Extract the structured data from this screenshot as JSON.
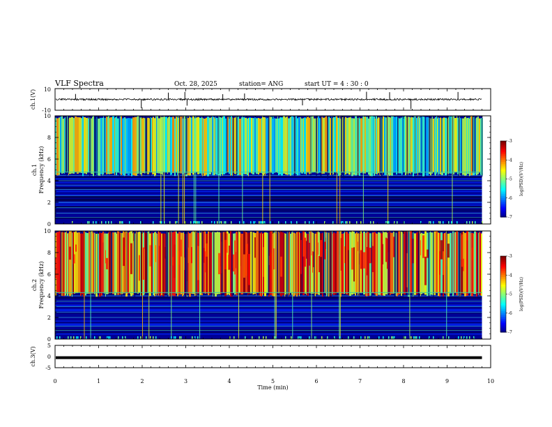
{
  "header": {
    "title": "VLF Spectra",
    "date": "Oct. 28, 2025",
    "station": "station= ANG",
    "start": "start  UT =   4 : 30 : 0"
  },
  "chart_data": [
    {
      "type": "line",
      "name": "ch1-waveform",
      "ylabel": "ch.1(V)",
      "ylim": [
        -10,
        10
      ],
      "y_tick_labels": [
        "10",
        "-10"
      ],
      "baseline": 0,
      "noise_band": [
        -0.8,
        0.8
      ],
      "spike_times_min": [
        0.47,
        1.98,
        2.6,
        2.98,
        3.03,
        3.85,
        4.35,
        5.68,
        7.15,
        7.68,
        8.17,
        9.25
      ]
    },
    {
      "type": "heatmap",
      "name": "ch1-spectrogram",
      "ylabel_lines": [
        "ch.1",
        "Frequency (kHz)"
      ],
      "ylim": [
        0,
        10
      ],
      "y_tick_labels": [
        "0",
        "2",
        "4",
        "6",
        "8",
        "10"
      ],
      "xlim": [
        0,
        9.8
      ],
      "transition_khz": 4.8,
      "low_band_lines_khz": [
        0.6,
        1.0,
        1.5,
        2.0,
        2.6,
        3.2,
        3.6,
        4.0,
        4.5
      ],
      "colorbar": {
        "label": "log(PSD)(V²/Hz)",
        "range": [
          -7,
          -3
        ],
        "tick_labels": [
          "-3",
          "-4",
          "-5",
          "-6",
          "-7"
        ]
      }
    },
    {
      "type": "heatmap",
      "name": "ch2-spectrogram",
      "ylabel_lines": [
        "ch.2",
        "Frequency (kHz)"
      ],
      "ylim": [
        0,
        10
      ],
      "y_tick_labels": [
        "0",
        "2",
        "4",
        "6",
        "8",
        "10"
      ],
      "xlim": [
        0,
        9.8
      ],
      "transition_khz": 4.3,
      "low_band_lines_khz": [
        0.8,
        1.2,
        2.0,
        2.5,
        3.0,
        3.5,
        4.0
      ],
      "colorbar": {
        "label": "log(PSD)(V²/Hz)",
        "range": [
          -7,
          -3
        ],
        "tick_labels": [
          "-3",
          "-4",
          "-5",
          "-6",
          "-7"
        ]
      }
    },
    {
      "type": "line",
      "name": "ch3-waveform",
      "ylabel": "ch.3(V)",
      "ylim": [
        -5,
        5
      ],
      "y_tick_labels": [
        "5",
        "0",
        "-5"
      ],
      "level": -0.5
    }
  ],
  "xaxis": {
    "label": "Time  (min)",
    "range": [
      0,
      10
    ],
    "tick_labels": [
      "0",
      "1",
      "2",
      "3",
      "4",
      "5",
      "6",
      "7",
      "8",
      "9",
      "10"
    ]
  }
}
